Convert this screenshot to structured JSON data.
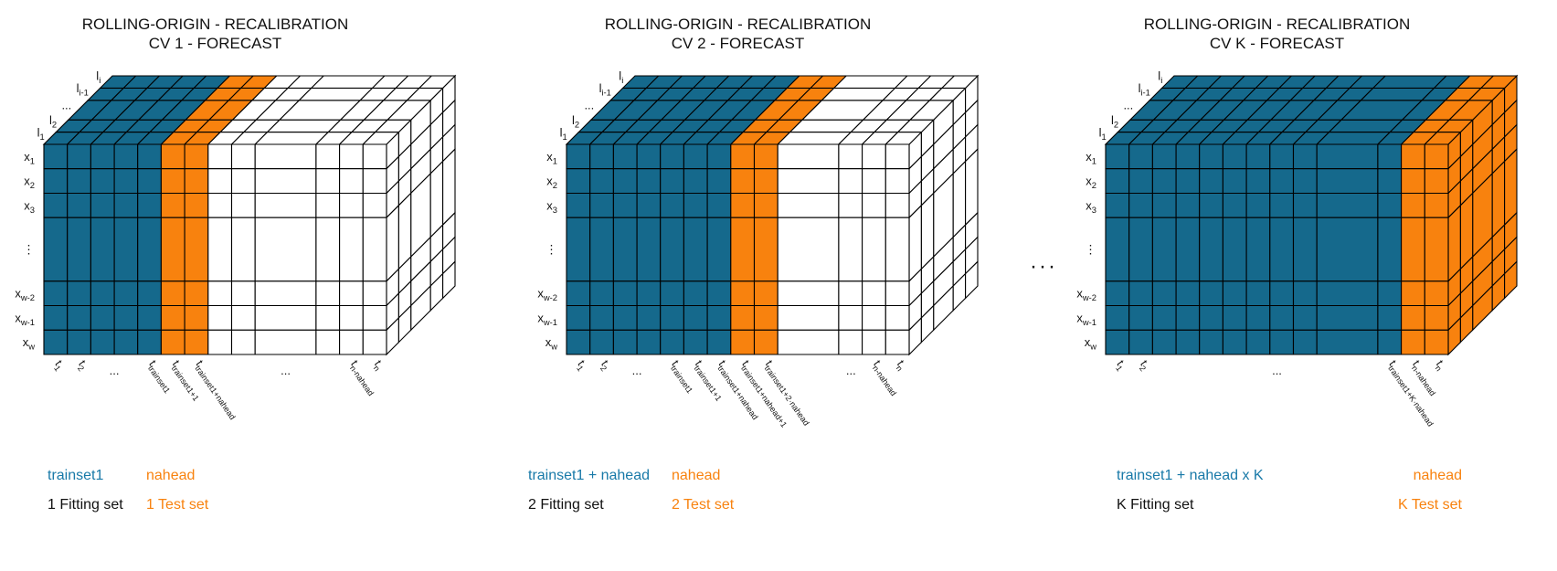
{
  "colors": {
    "train_fill": "#15698C",
    "test_fill": "#F8820E",
    "plain_fill": "#FFFFFF",
    "grid_stroke": "#000000",
    "train_text": "#1879A8",
    "test_text": "#F8820E",
    "black_text": "#111111"
  },
  "separator": "···",
  "shared": {
    "row_labels": [
      {
        "base": "x",
        "sub": "1"
      },
      {
        "base": "x",
        "sub": "2"
      },
      {
        "base": "x",
        "sub": "3"
      },
      {
        "base": "⋮",
        "sub": ""
      },
      {
        "base": "x",
        "sub": "w-2"
      },
      {
        "base": "x",
        "sub": "w-1"
      },
      {
        "base": "x",
        "sub": "w"
      }
    ],
    "depth_labels": [
      {
        "base": "l",
        "sub": "1"
      },
      {
        "base": "l",
        "sub": "2"
      },
      {
        "base": "...",
        "sub": ""
      },
      {
        "base": "l",
        "sub": "i-1"
      },
      {
        "base": "l",
        "sub": "i"
      }
    ]
  },
  "cubes": [
    {
      "title": {
        "line1": "ROLLING-ORIGIN - RECALIBRATION",
        "line2": "CV 1 - FORECAST"
      },
      "col_colors": [
        "train",
        "train",
        "train",
        "train",
        "train",
        "test",
        "test",
        "plain",
        "plain",
        "plain",
        "plain",
        "plain",
        "plain"
      ],
      "side_color": "plain",
      "t_labels": [
        {
          "col": 0,
          "base": "t",
          "sub": "1"
        },
        {
          "col": 1,
          "base": "t",
          "sub": "2"
        },
        {
          "col": 2.5,
          "dots": true
        },
        {
          "col": 4,
          "base": "t",
          "sub": "trainset1"
        },
        {
          "col": 5,
          "base": "t",
          "sub": "trainset1+1"
        },
        {
          "col": 6,
          "base": "t",
          "sub": "trainset1+nahead"
        },
        {
          "col": 9,
          "dots": true
        },
        {
          "col": 11,
          "base": "t",
          "sub": "n-nahead"
        },
        {
          "col": 12,
          "base": "t",
          "sub": "n"
        }
      ],
      "legend": {
        "train_span": "trainset1",
        "test_span": "nahead",
        "fit_set": "1 Fitting set",
        "test_set": "1 Test set"
      }
    },
    {
      "title": {
        "line1": "ROLLING-ORIGIN - RECALIBRATION",
        "line2": "CV 2 - FORECAST"
      },
      "col_colors": [
        "train",
        "train",
        "train",
        "train",
        "train",
        "train",
        "train",
        "test",
        "test",
        "plain",
        "plain",
        "plain",
        "plain"
      ],
      "side_color": "plain",
      "t_labels": [
        {
          "col": 0,
          "base": "t",
          "sub": "1"
        },
        {
          "col": 1,
          "base": "t",
          "sub": "2"
        },
        {
          "col": 2.5,
          "dots": true
        },
        {
          "col": 4,
          "base": "t",
          "sub": "trainset1"
        },
        {
          "col": 5,
          "base": "t",
          "sub": "trainset1+1"
        },
        {
          "col": 6,
          "base": "t",
          "sub": "trainset1+nahead"
        },
        {
          "col": 7,
          "base": "t",
          "sub": "trainset1+nahead+1"
        },
        {
          "col": 8,
          "base": "t",
          "sub": "trainset1+2·nahead"
        },
        {
          "col": 9.7,
          "dots": true
        },
        {
          "col": 11,
          "base": "t",
          "sub": "n-nahead"
        },
        {
          "col": 12,
          "base": "t",
          "sub": "n"
        }
      ],
      "legend": {
        "train_span": "trainset1 + nahead",
        "test_span": "nahead",
        "fit_set": "2 Fitting set",
        "test_set": "2 Test set"
      }
    },
    {
      "title": {
        "line1": "ROLLING-ORIGIN - RECALIBRATION",
        "line2": "CV K - FORECAST"
      },
      "col_colors": [
        "train",
        "train",
        "train",
        "train",
        "train",
        "train",
        "train",
        "train",
        "train",
        "train",
        "train",
        "test",
        "test"
      ],
      "side_color": "test",
      "t_labels": [
        {
          "col": 0,
          "base": "t",
          "sub": "1"
        },
        {
          "col": 1,
          "base": "t",
          "sub": "2"
        },
        {
          "mid": true,
          "dots": true
        },
        {
          "col": 10,
          "base": "t",
          "sub": "trainset1+K·nahead"
        },
        {
          "col": 11,
          "base": "t",
          "sub": "n-nahead"
        },
        {
          "col": 12,
          "base": "t",
          "sub": "n"
        }
      ],
      "legend": {
        "train_span": "trainset1 + nahead x K",
        "test_span": "nahead",
        "fit_set": "K Fitting set",
        "test_set": "K Test set"
      }
    }
  ]
}
